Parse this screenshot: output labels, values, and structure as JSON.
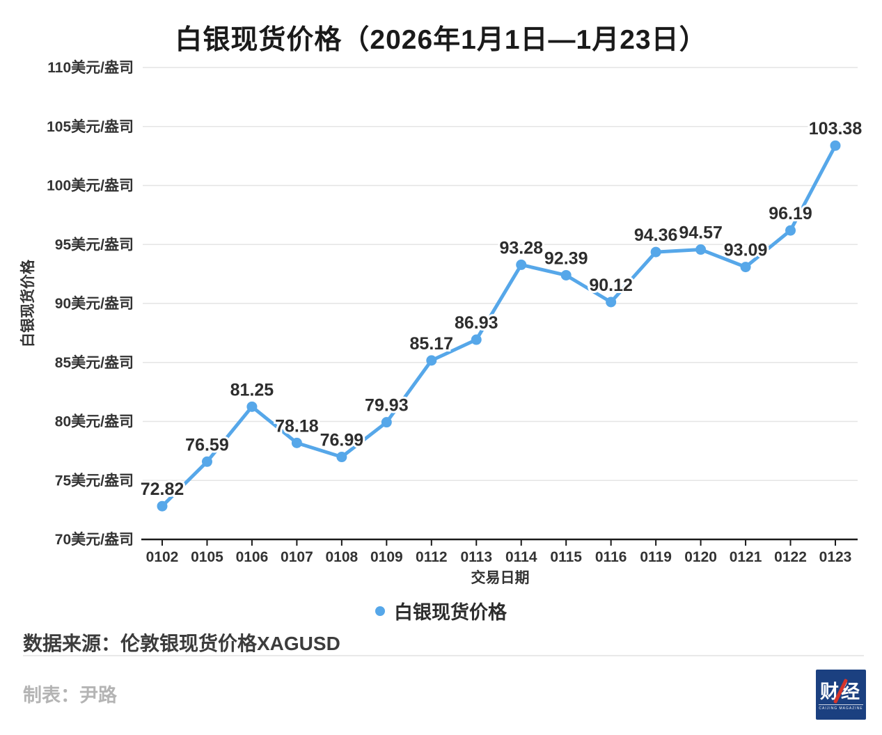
{
  "title": "白银现货价格（2026年1月1日—1月23日）",
  "chart_data": {
    "type": "line",
    "title": "白银现货价格（2026年1月1日—1月23日）",
    "categories": [
      "0102",
      "0105",
      "0106",
      "0107",
      "0108",
      "0109",
      "0112",
      "0113",
      "0114",
      "0115",
      "0116",
      "0119",
      "0120",
      "0121",
      "0122",
      "0123"
    ],
    "series": [
      {
        "name": "白银现货价格",
        "values": [
          72.82,
          76.59,
          81.25,
          78.18,
          76.99,
          79.93,
          85.17,
          86.93,
          93.28,
          92.39,
          90.12,
          94.36,
          94.57,
          93.09,
          96.19,
          103.38
        ]
      }
    ],
    "xlabel": "交易日期",
    "ylabel": "白银现货价格",
    "y_ticks": [
      110,
      105,
      100,
      95,
      90,
      85,
      80,
      75,
      70
    ],
    "y_unit_suffix": "美元/盎司",
    "ylim": [
      70,
      110
    ],
    "grid": true,
    "legend_position": "bottom",
    "data_labels": true
  },
  "legend": {
    "label": "白银现货价格"
  },
  "source_note": "数据来源：伦敦银现货价格XAGUSD",
  "credit": "制表：尹路",
  "logo": {
    "text": "财经",
    "subtext": "CAIJING MAGAZINE"
  },
  "colors": {
    "line": "#56A7E9",
    "marker": "#56A7E9",
    "grid": "#e4e4e4",
    "axis": "#1a1a1a",
    "tick_label": "#333333",
    "point_label": "#2d2d2d",
    "logo_navy": "#1B4080",
    "logo_red": "#D6342A"
  }
}
